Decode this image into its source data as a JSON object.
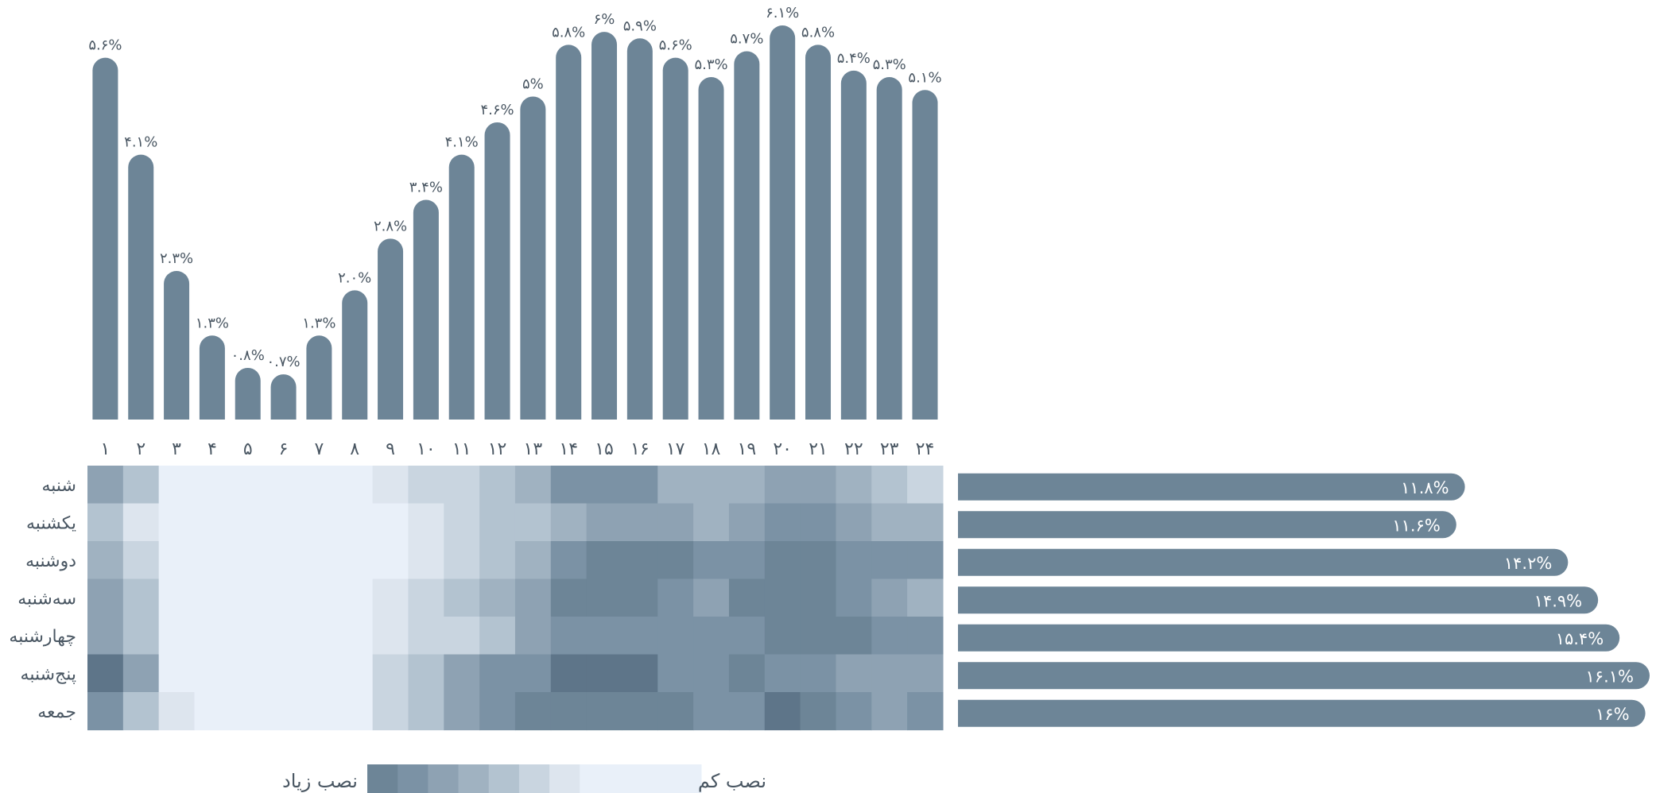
{
  "chart_data": [
    {
      "type": "bar",
      "categories": [
        "۱",
        "۲",
        "۳",
        "۴",
        "۵",
        "۶",
        "۷",
        "۸",
        "۹",
        "۱۰",
        "۱۱",
        "۱۲",
        "۱۳",
        "۱۴",
        "۱۵",
        "۱۶",
        "۱۷",
        "۱۸",
        "۱۹",
        "۲۰",
        "۲۱",
        "۲۲",
        "۲۳",
        "۲۴"
      ],
      "values": [
        5.6,
        4.1,
        2.3,
        1.3,
        0.8,
        0.7,
        1.3,
        2.0,
        2.8,
        3.4,
        4.1,
        4.6,
        5.0,
        5.8,
        6.0,
        5.9,
        5.6,
        5.3,
        5.7,
        6.1,
        5.8,
        5.4,
        5.3,
        5.1
      ],
      "value_labels": [
        "۵.۶%",
        "۴.۱%",
        "۲.۳%",
        "۱.۳%",
        "۰.۸%",
        "۰.۷%",
        "۱.۳%",
        "۲.۰%",
        "۲.۸%",
        "۳.۴%",
        "۴.۱%",
        "۴.۶%",
        "۵%",
        "۵.۸%",
        "۶%",
        "۵.۹%",
        "۵.۶%",
        "۵.۳%",
        "۵.۷%",
        "۶.۱%",
        "۵.۸%",
        "۵.۴%",
        "۵.۳%",
        "۵.۱%"
      ],
      "color": "#6d8597"
    },
    {
      "type": "heatmap",
      "rows": [
        "شنبه",
        "یکشنبه",
        "دوشنبه",
        "سه‌شنبه",
        "چهارشنبه",
        "پنج‌شنبه",
        "جمعه"
      ],
      "columns": [
        "۱",
        "۲",
        "۳",
        "۴",
        "۵",
        "۶",
        "۷",
        "۸",
        "۹",
        "۱۰",
        "۱۱",
        "۱۲",
        "۱۳",
        "۱۴",
        "۱۵",
        "۱۶",
        "۱۷",
        "۱۸",
        "۱۹",
        "۲۰",
        "۲۱",
        "۲۲",
        "۲۳",
        "۲۴"
      ],
      "scale": [
        0,
        8
      ],
      "values": [
        [
          5,
          3,
          0,
          0,
          0,
          0,
          0,
          0,
          1,
          2,
          2,
          3,
          4,
          6,
          6,
          6,
          4,
          4,
          4,
          5,
          5,
          4,
          3,
          2
        ],
        [
          3,
          1,
          0,
          0,
          0,
          0,
          0,
          0,
          0,
          1,
          2,
          3,
          3,
          4,
          5,
          5,
          5,
          4,
          5,
          6,
          6,
          5,
          4,
          4
        ],
        [
          4,
          2,
          0,
          0,
          0,
          0,
          0,
          0,
          0,
          1,
          2,
          3,
          4,
          6,
          7,
          7,
          7,
          6,
          6,
          7,
          7,
          6,
          6,
          6
        ],
        [
          5,
          3,
          0,
          0,
          0,
          0,
          0,
          0,
          1,
          2,
          3,
          4,
          5,
          7,
          7,
          7,
          6,
          5,
          7,
          7,
          7,
          6,
          5,
          4
        ],
        [
          5,
          3,
          0,
          0,
          0,
          0,
          0,
          0,
          1,
          2,
          2,
          3,
          5,
          6,
          6,
          6,
          6,
          6,
          6,
          7,
          7,
          7,
          6,
          6
        ],
        [
          8,
          5,
          0,
          0,
          0,
          0,
          0,
          0,
          2,
          3,
          5,
          6,
          6,
          8,
          8,
          8,
          6,
          6,
          7,
          6,
          6,
          5,
          5,
          5
        ],
        [
          6,
          3,
          1,
          0,
          0,
          0,
          0,
          0,
          2,
          3,
          5,
          6,
          7,
          7,
          7,
          7,
          7,
          6,
          6,
          8,
          7,
          6,
          5,
          6
        ]
      ],
      "palette": [
        "#e9f0f9",
        "#dde5ee",
        "#c9d5e0",
        "#b3c3d0",
        "#a0b2c1",
        "#8ea2b3",
        "#7b92a5",
        "#6d8597",
        "#5e7589"
      ]
    },
    {
      "type": "bar",
      "orientation": "horizontal",
      "categories": [
        "شنبه",
        "یکشنبه",
        "دوشنبه",
        "سه‌شنبه",
        "چهارشنبه",
        "پنج‌شنبه",
        "جمعه"
      ],
      "values": [
        11.8,
        11.6,
        14.2,
        14.9,
        15.4,
        16.1,
        16.0
      ],
      "value_labels": [
        "۱۱.۸%",
        "۱۱.۶%",
        "۱۴.۲%",
        "۱۴.۹%",
        "۱۵.۴%",
        "۱۶.۱%",
        "۱۶%"
      ],
      "color": "#6d8597"
    }
  ],
  "legend": {
    "high_label": "نصب زیاد",
    "low_label": "نصب کم",
    "swatches": [
      "#6d8597",
      "#7b92a5",
      "#8ea2b3",
      "#a0b2c1",
      "#b3c3d0",
      "#c9d5e0",
      "#dde5ee",
      "#e9f0f9"
    ],
    "swatch_weights": [
      1,
      1,
      1,
      1,
      1,
      1,
      1,
      4
    ]
  },
  "colors": {
    "label_text": "#4a5763",
    "bar": "#6d8597"
  }
}
